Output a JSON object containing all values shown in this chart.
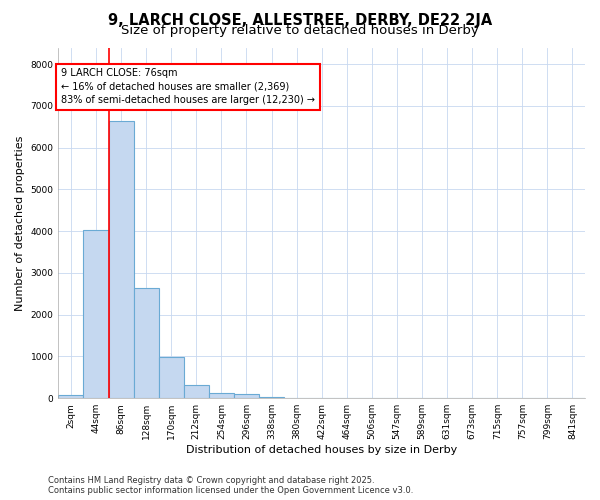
{
  "title_line1": "9, LARCH CLOSE, ALLESTREE, DERBY, DE22 2JA",
  "title_line2": "Size of property relative to detached houses in Derby",
  "xlabel": "Distribution of detached houses by size in Derby",
  "ylabel": "Number of detached properties",
  "categories": [
    "2sqm",
    "44sqm",
    "86sqm",
    "128sqm",
    "170sqm",
    "212sqm",
    "254sqm",
    "296sqm",
    "338sqm",
    "380sqm",
    "422sqm",
    "464sqm",
    "506sqm",
    "547sqm",
    "589sqm",
    "631sqm",
    "673sqm",
    "715sqm",
    "757sqm",
    "799sqm",
    "841sqm"
  ],
  "values": [
    80,
    4020,
    6650,
    2650,
    980,
    320,
    120,
    90,
    30,
    0,
    0,
    0,
    0,
    0,
    0,
    0,
    0,
    0,
    0,
    0,
    0
  ],
  "bar_color": "#c5d8f0",
  "bar_edge_color": "#6aaad4",
  "bar_linewidth": 0.8,
  "vline_color": "red",
  "vline_linewidth": 1.2,
  "vline_x": 1.5,
  "annotation_text": "9 LARCH CLOSE: 76sqm\n← 16% of detached houses are smaller (2,369)\n83% of semi-detached houses are larger (12,230) →",
  "ylim": [
    0,
    8400
  ],
  "yticks": [
    0,
    1000,
    2000,
    3000,
    4000,
    5000,
    6000,
    7000,
    8000
  ],
  "background_color": "#ffffff",
  "plot_background_color": "#ffffff",
  "grid_color": "#c8d8f0",
  "footer_line1": "Contains HM Land Registry data © Crown copyright and database right 2025.",
  "footer_line2": "Contains public sector information licensed under the Open Government Licence v3.0.",
  "title_fontsize": 10.5,
  "subtitle_fontsize": 9.5,
  "axis_label_fontsize": 8,
  "tick_fontsize": 6.5,
  "annotation_fontsize": 7,
  "footer_fontsize": 6
}
